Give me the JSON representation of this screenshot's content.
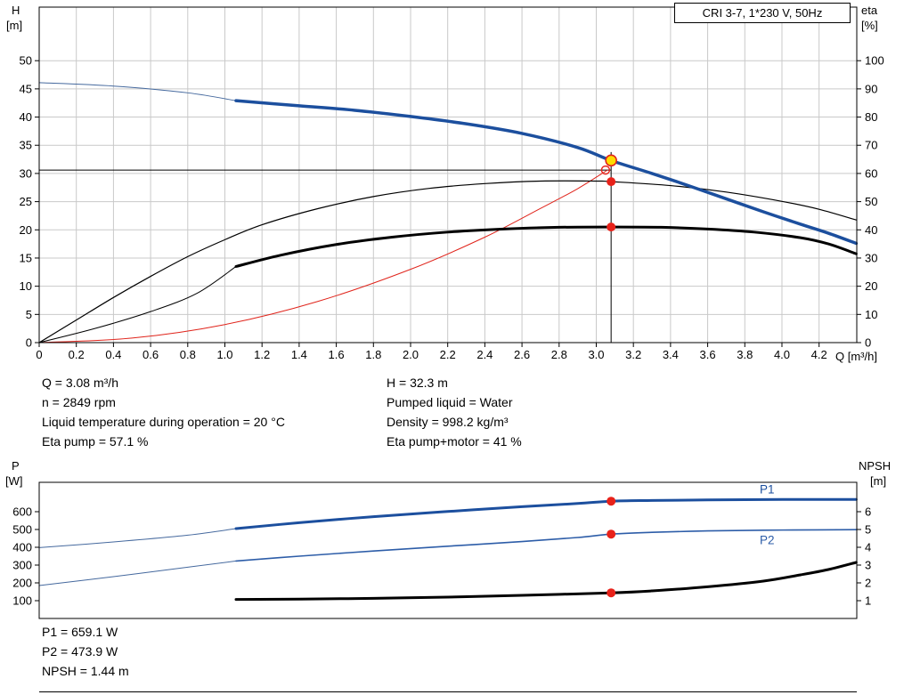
{
  "readouts": {
    "top_left": [
      "Q = 3.08 m³/h",
      "n = 2849 rpm",
      "Liquid temperature during operation = 20 °C",
      "Eta pump = 57.1 %"
    ],
    "top_right": [
      "H = 32.3 m",
      "Pumped liquid = Water",
      "Density = 998.2 kg/m³",
      "Eta pump+motor = 41 %"
    ],
    "bottom": [
      "P1 = 659.1 W",
      "P2 = 473.9 W",
      "NPSH = 1.44 m"
    ]
  },
  "chart_data": [
    {
      "id": "qh",
      "type": "line",
      "title": "CRI 3-7, 1*230 V, 50Hz",
      "x_label": "Q [m³/h]",
      "xlim": [
        0,
        4.403
      ],
      "x_ticks": [
        "0",
        "0.2",
        "0.4",
        "0.6",
        "0.8",
        "1.0",
        "1.2",
        "1.4",
        "1.6",
        "1.8",
        "2.0",
        "2.2",
        "2.4",
        "2.6",
        "2.8",
        "3.0",
        "3.2",
        "3.4",
        "3.6",
        "3.8",
        "4.0",
        "4.2"
      ],
      "grid": true,
      "left_axis": {
        "name": "H",
        "unit": "[m]",
        "lim": [
          0,
          59.5
        ],
        "ticks": [
          "0",
          "5",
          "10",
          "15",
          "20",
          "25",
          "30",
          "35",
          "40",
          "45",
          "50"
        ]
      },
      "right_axis": {
        "name": "eta",
        "unit": "[%]",
        "lim": [
          0,
          119
        ],
        "ticks": [
          "0",
          "10",
          "20",
          "30",
          "40",
          "50",
          "60",
          "70",
          "80",
          "90",
          "100"
        ]
      },
      "crosshair": {
        "q": 3.08,
        "h": 30.6,
        "v_top": 33.8
      },
      "series": [
        {
          "name": "system-curve",
          "axis": "left",
          "color": "#e0241b",
          "width": 1,
          "points": [
            [
              0,
              0
            ],
            [
              0.5,
              0.8
            ],
            [
              1.0,
              3.2
            ],
            [
              1.5,
              7.3
            ],
            [
              2.0,
              13.0
            ],
            [
              2.4,
              18.7
            ],
            [
              2.7,
              23.8
            ],
            [
              2.9,
              27.3
            ],
            [
              3.06,
              30.6
            ]
          ]
        },
        {
          "name": "eta-pump-motor-ext",
          "axis": "right",
          "color": "#000000",
          "width": 1,
          "points": [
            [
              0,
              0
            ],
            [
              0.3,
              5
            ],
            [
              0.6,
              11
            ],
            [
              0.85,
              17.5
            ],
            [
              1.06,
              27
            ]
          ]
        },
        {
          "name": "eta-pump",
          "axis": "right",
          "color": "#000000",
          "width": 1.2,
          "points": [
            [
              0,
              0
            ],
            [
              0.2,
              8
            ],
            [
              0.4,
              16
            ],
            [
              0.6,
              23.5
            ],
            [
              0.8,
              30.5
            ],
            [
              1.0,
              36.5
            ],
            [
              1.2,
              41.8
            ],
            [
              1.5,
              47.5
            ],
            [
              1.8,
              51.8
            ],
            [
              2.1,
              54.7
            ],
            [
              2.4,
              56.4
            ],
            [
              2.7,
              57.3
            ],
            [
              3.0,
              57.3
            ],
            [
              3.08,
              57.1
            ],
            [
              3.4,
              55.7
            ],
            [
              3.7,
              53.4
            ],
            [
              4.0,
              50.1
            ],
            [
              4.2,
              47.3
            ],
            [
              4.4,
              43.5
            ]
          ]
        },
        {
          "name": "eta-pump-motor",
          "axis": "right",
          "color": "#000000",
          "width": 3,
          "points": [
            [
              1.06,
              27
            ],
            [
              1.3,
              31
            ],
            [
              1.6,
              34.8
            ],
            [
              1.9,
              37.4
            ],
            [
              2.2,
              39.2
            ],
            [
              2.5,
              40.3
            ],
            [
              2.8,
              40.9
            ],
            [
              3.08,
              41
            ],
            [
              3.35,
              40.9
            ],
            [
              3.6,
              40.3
            ],
            [
              3.85,
              39.2
            ],
            [
              4.1,
              37.2
            ],
            [
              4.25,
              35
            ],
            [
              4.4,
              31.5
            ]
          ]
        },
        {
          "name": "pump-curve-ext",
          "axis": "left",
          "color": "#45699e",
          "width": 1,
          "points": [
            [
              0,
              46.1
            ],
            [
              0.4,
              45.5
            ],
            [
              0.8,
              44.3
            ],
            [
              1.06,
              42.9
            ]
          ]
        },
        {
          "name": "pump-curve",
          "axis": "left",
          "color": "#1c4f9e",
          "width": 3.5,
          "points": [
            [
              1.06,
              42.9
            ],
            [
              1.4,
              42.0
            ],
            [
              1.7,
              41.2
            ],
            [
              2.0,
              40.1
            ],
            [
              2.3,
              38.8
            ],
            [
              2.6,
              37.1
            ],
            [
              2.9,
              34.6
            ],
            [
              3.08,
              32.3
            ],
            [
              3.3,
              30.0
            ],
            [
              3.5,
              27.8
            ],
            [
              3.7,
              25.5
            ],
            [
              3.9,
              23.2
            ],
            [
              4.1,
              21.0
            ],
            [
              4.25,
              19.4
            ],
            [
              4.4,
              17.6
            ]
          ]
        }
      ],
      "markers": [
        {
          "name": "spec-duty-point",
          "style": "red-open",
          "axis": "left",
          "q": 3.05,
          "v": 30.6
        },
        {
          "name": "duty-point",
          "style": "yellow",
          "axis": "left",
          "q": 3.08,
          "v": 32.3
        },
        {
          "name": "eta-pump-point",
          "style": "red",
          "axis": "right",
          "q": 3.08,
          "v": 57.1
        },
        {
          "name": "eta-pump-motor-point",
          "style": "red",
          "axis": "right",
          "q": 3.08,
          "v": 41
        }
      ]
    },
    {
      "id": "power",
      "type": "line",
      "xlim": [
        0,
        4.403
      ],
      "grid": false,
      "left_axis": {
        "name": "P",
        "unit": "[W]",
        "lim": [
          0,
          765
        ],
        "ticks": [
          "100",
          "200",
          "300",
          "400",
          "500",
          "600"
        ]
      },
      "right_axis": {
        "name": "NPSH",
        "unit": "[m]",
        "lim": [
          0,
          7.65
        ],
        "ticks": [
          "1",
          "2",
          "3",
          "4",
          "5",
          "6"
        ]
      },
      "series": [
        {
          "name": "p1-ext",
          "axis": "left",
          "color": "#45699e",
          "width": 1,
          "points": [
            [
              0,
              398
            ],
            [
              0.4,
              430
            ],
            [
              0.8,
              468
            ],
            [
              1.06,
              505
            ]
          ]
        },
        {
          "name": "p2-ext",
          "axis": "left",
          "color": "#45699e",
          "width": 1,
          "points": [
            [
              0,
              185
            ],
            [
              0.4,
              235
            ],
            [
              0.8,
              288
            ],
            [
              1.06,
              323
            ]
          ]
        },
        {
          "name": "p1",
          "axis": "left",
          "color": "#1c4f9e",
          "width": 3,
          "points": [
            [
              1.06,
              505
            ],
            [
              1.4,
              538
            ],
            [
              1.8,
              572
            ],
            [
              2.2,
              601
            ],
            [
              2.6,
              628
            ],
            [
              2.9,
              646
            ],
            [
              3.08,
              659
            ],
            [
              3.3,
              663
            ],
            [
              3.6,
              666
            ],
            [
              3.9,
              668
            ],
            [
              4.2,
              669
            ],
            [
              4.4,
              669
            ]
          ]
        },
        {
          "name": "p2",
          "axis": "left",
          "color": "#2d5da8",
          "width": 1.6,
          "points": [
            [
              1.06,
              323
            ],
            [
              1.4,
              350
            ],
            [
              1.8,
              379
            ],
            [
              2.2,
              406
            ],
            [
              2.6,
              432
            ],
            [
              2.9,
              455
            ],
            [
              3.08,
              474
            ],
            [
              3.3,
              484
            ],
            [
              3.6,
              492
            ],
            [
              3.9,
              496
            ],
            [
              4.2,
              498
            ],
            [
              4.4,
              499
            ]
          ]
        },
        {
          "name": "npsh",
          "axis": "right",
          "color": "#000000",
          "width": 3,
          "points": [
            [
              1.06,
              1.07
            ],
            [
              1.4,
              1.09
            ],
            [
              1.8,
              1.13
            ],
            [
              2.2,
              1.2
            ],
            [
              2.6,
              1.3
            ],
            [
              3.08,
              1.44
            ],
            [
              3.3,
              1.55
            ],
            [
              3.6,
              1.78
            ],
            [
              3.9,
              2.1
            ],
            [
              4.1,
              2.45
            ],
            [
              4.25,
              2.75
            ],
            [
              4.4,
              3.15
            ]
          ]
        }
      ],
      "series_labels": [
        {
          "text": "P1",
          "q": 3.88,
          "v": 722,
          "axis": "left",
          "color": "#1c4f9e"
        },
        {
          "text": "P2",
          "q": 3.88,
          "v": 438,
          "axis": "left",
          "color": "#2d5da8"
        }
      ],
      "markers": [
        {
          "name": "p1-point",
          "style": "red",
          "axis": "left",
          "q": 3.08,
          "v": 659
        },
        {
          "name": "p2-point",
          "style": "red",
          "axis": "left",
          "q": 3.08,
          "v": 474
        },
        {
          "name": "npsh-point",
          "style": "red",
          "axis": "right",
          "q": 3.08,
          "v": 1.44
        }
      ]
    }
  ]
}
